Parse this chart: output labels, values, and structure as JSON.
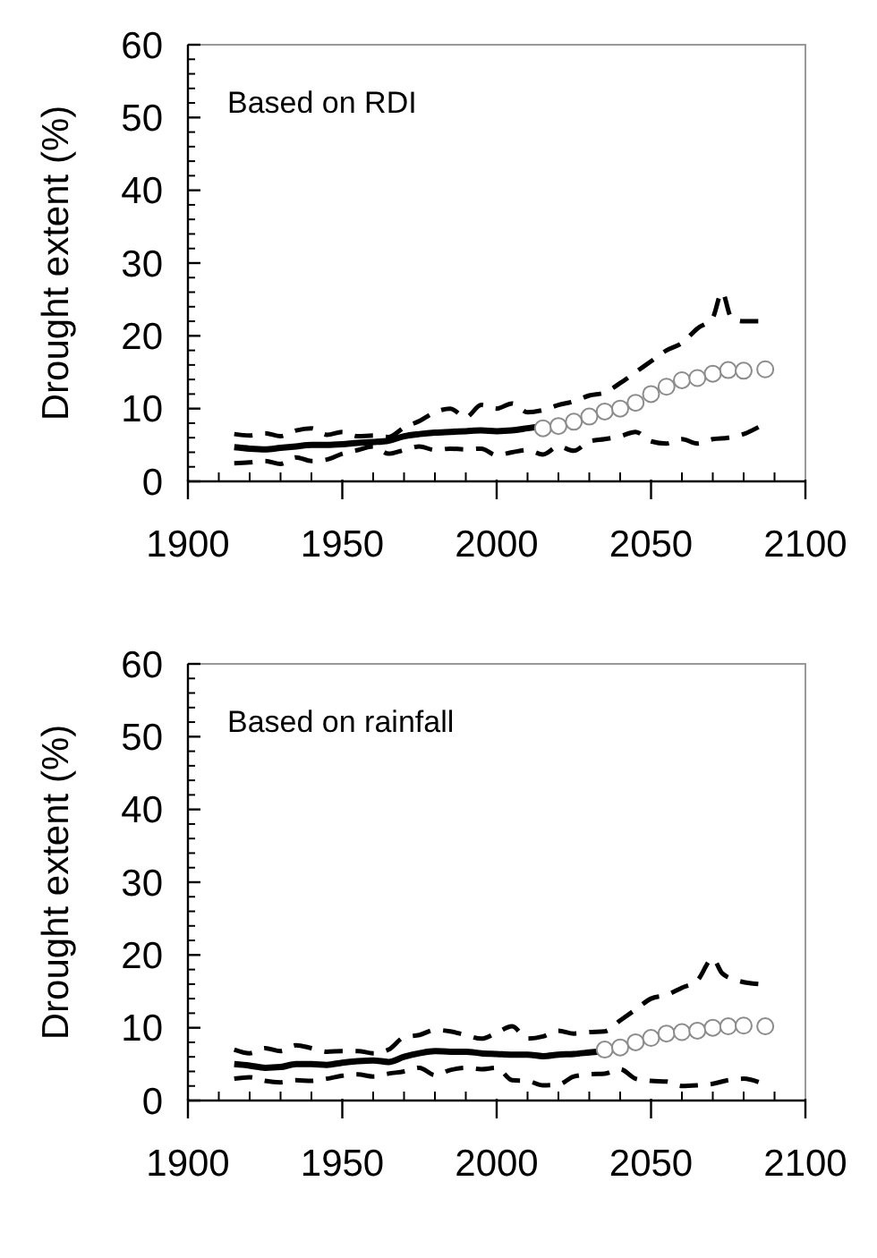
{
  "chart_data": [
    {
      "type": "line",
      "ylabel": "Drought extent (%)",
      "annotations": [
        "Based on RDI"
      ],
      "xlim": [
        1900,
        2100
      ],
      "xticks": [
        1900,
        1950,
        2000,
        2050,
        2100
      ],
      "ylim": [
        0,
        60
      ],
      "yticks": [
        0,
        10,
        20,
        30,
        40,
        50,
        60
      ],
      "series": [
        {
          "type": "line",
          "line_style": "solid",
          "color": "#000000",
          "x": [
            1915,
            1920,
            1925,
            1930,
            1935,
            1940,
            1945,
            1950,
            1955,
            1960,
            1965,
            1970,
            1975,
            1980,
            1985,
            1990,
            1995,
            2000,
            2005,
            2010,
            2015
          ],
          "values": [
            4.7,
            4.5,
            4.4,
            4.6,
            4.8,
            5.0,
            5.0,
            5.1,
            5.3,
            5.4,
            5.6,
            6.2,
            6.5,
            6.7,
            6.8,
            6.9,
            7.0,
            6.9,
            7.0,
            7.3,
            7.6
          ]
        },
        {
          "type": "scatter",
          "marker": "circle",
          "color": "#8c8c8c",
          "x": [
            2015,
            2020,
            2025,
            2030,
            2035,
            2040,
            2045,
            2050,
            2055,
            2060,
            2065,
            2070,
            2075,
            2080,
            2087
          ],
          "values": [
            7.3,
            7.6,
            8.2,
            8.9,
            9.6,
            10.0,
            10.8,
            12.0,
            13.0,
            13.9,
            14.2,
            14.8,
            15.3,
            15.2,
            15.4
          ]
        },
        {
          "type": "line",
          "line_style": "dashed",
          "color": "#000000",
          "x": [
            1915,
            1920,
            1925,
            1930,
            1935,
            1940,
            1945,
            1950,
            1955,
            1960,
            1965,
            1970,
            1975,
            1980,
            1985,
            1990,
            1995,
            2000,
            2005,
            2010,
            2015,
            2020,
            2025,
            2030,
            2035,
            2040,
            2045,
            2050,
            2055,
            2060,
            2065,
            2070,
            2073,
            2076,
            2080,
            2085
          ],
          "values": [
            6.5,
            6.3,
            6.6,
            6.2,
            7.0,
            7.3,
            6.4,
            6.8,
            6.2,
            6.3,
            6.1,
            7.4,
            8.3,
            9.5,
            10.0,
            8.8,
            10.5,
            10.0,
            10.7,
            9.5,
            9.8,
            10.5,
            11.0,
            11.8,
            12.2,
            13.5,
            15.0,
            16.5,
            18.0,
            19.0,
            21.0,
            22.5,
            26.0,
            22.5,
            22.0,
            22.0
          ]
        },
        {
          "type": "line",
          "line_style": "dashed",
          "color": "#000000",
          "x": [
            1915,
            1920,
            1925,
            1930,
            1935,
            1940,
            1945,
            1950,
            1955,
            1960,
            1965,
            1970,
            1975,
            1980,
            1985,
            1990,
            1995,
            2000,
            2005,
            2010,
            2015,
            2020,
            2025,
            2030,
            2035,
            2040,
            2045,
            2050,
            2055,
            2060,
            2065,
            2070,
            2075,
            2080,
            2085
          ],
          "values": [
            2.5,
            2.6,
            2.8,
            2.4,
            3.3,
            2.8,
            3.0,
            3.8,
            4.3,
            4.8,
            3.8,
            4.3,
            4.8,
            4.3,
            4.5,
            4.4,
            4.5,
            3.6,
            4.0,
            4.3,
            3.7,
            4.8,
            4.2,
            5.5,
            5.8,
            6.2,
            6.8,
            5.5,
            5.2,
            5.8,
            5.2,
            5.8,
            6.0,
            6.5,
            7.5
          ]
        }
      ]
    },
    {
      "type": "line",
      "ylabel": "Drought extent (%)",
      "annotations": [
        "Based on rainfall"
      ],
      "xlim": [
        1900,
        2100
      ],
      "xticks": [
        1900,
        1950,
        2000,
        2050,
        2100
      ],
      "ylim": [
        0,
        60
      ],
      "yticks": [
        0,
        10,
        20,
        30,
        40,
        50,
        60
      ],
      "series": [
        {
          "type": "line",
          "line_style": "solid",
          "color": "#000000",
          "x": [
            1915,
            1920,
            1925,
            1930,
            1935,
            1940,
            1945,
            1950,
            1955,
            1960,
            1965,
            1970,
            1975,
            1980,
            1985,
            1990,
            1995,
            2000,
            2005,
            2010,
            2015,
            2020,
            2025,
            2030,
            2035
          ],
          "values": [
            5.0,
            4.8,
            4.5,
            4.6,
            5.0,
            5.0,
            4.9,
            5.2,
            5.4,
            5.5,
            5.3,
            6.0,
            6.5,
            6.8,
            6.7,
            6.7,
            6.5,
            6.4,
            6.3,
            6.3,
            6.1,
            6.3,
            6.4,
            6.6,
            6.8
          ]
        },
        {
          "type": "scatter",
          "marker": "circle",
          "color": "#8c8c8c",
          "x": [
            2035,
            2040,
            2045,
            2050,
            2055,
            2060,
            2065,
            2070,
            2075,
            2080,
            2087
          ],
          "values": [
            7.0,
            7.3,
            8.0,
            8.6,
            9.2,
            9.4,
            9.6,
            10.0,
            10.2,
            10.3,
            10.2
          ]
        },
        {
          "type": "line",
          "line_style": "dashed",
          "color": "#000000",
          "x": [
            1915,
            1920,
            1925,
            1930,
            1935,
            1940,
            1945,
            1950,
            1955,
            1960,
            1965,
            1970,
            1975,
            1980,
            1985,
            1990,
            1995,
            2000,
            2005,
            2010,
            2015,
            2020,
            2025,
            2030,
            2035,
            2040,
            2045,
            2050,
            2055,
            2060,
            2065,
            2070,
            2073,
            2078,
            2085
          ],
          "values": [
            7.0,
            6.5,
            7.2,
            6.8,
            7.6,
            7.2,
            6.7,
            6.8,
            6.8,
            6.5,
            7.0,
            8.7,
            9.0,
            9.7,
            9.5,
            9.0,
            8.5,
            9.3,
            10.2,
            8.5,
            8.8,
            9.6,
            9.2,
            9.4,
            9.5,
            11.0,
            12.5,
            14.0,
            14.5,
            15.5,
            16.5,
            19.5,
            17.5,
            16.5,
            16.0
          ]
        },
        {
          "type": "line",
          "line_style": "dashed",
          "color": "#000000",
          "x": [
            1915,
            1920,
            1925,
            1930,
            1935,
            1940,
            1945,
            1950,
            1955,
            1960,
            1965,
            1970,
            1975,
            1980,
            1985,
            1990,
            1995,
            2000,
            2005,
            2010,
            2015,
            2020,
            2025,
            2030,
            2035,
            2040,
            2045,
            2050,
            2055,
            2060,
            2065,
            2070,
            2075,
            2080,
            2085
          ],
          "values": [
            3.0,
            3.2,
            2.7,
            2.5,
            2.8,
            2.7,
            3.0,
            3.4,
            3.6,
            3.3,
            3.7,
            4.0,
            4.5,
            3.5,
            4.2,
            4.5,
            4.3,
            4.5,
            2.8,
            2.7,
            2.1,
            2.2,
            3.3,
            3.6,
            3.7,
            4.3,
            3.0,
            2.7,
            2.6,
            2.0,
            2.1,
            2.3,
            2.8,
            3.0,
            2.5
          ]
        }
      ]
    }
  ]
}
